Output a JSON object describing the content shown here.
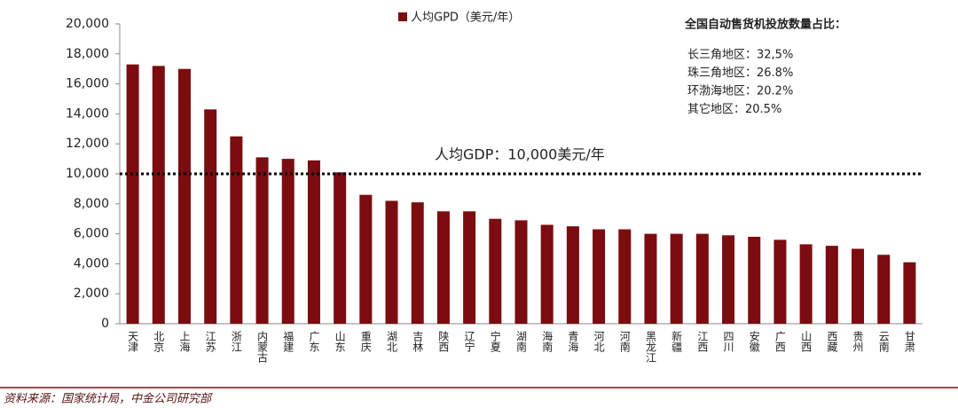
{
  "chart_data": {
    "type": "bar",
    "legend": "人均GPD（美元/年）",
    "categories": [
      "天津",
      "北京",
      "上海",
      "江苏",
      "浙江",
      "内蒙古",
      "福建",
      "广东",
      "山东",
      "重庆",
      "湖北",
      "吉林",
      "陕西",
      "辽宁",
      "宁夏",
      "湖南",
      "海南",
      "青海",
      "河北",
      "河南",
      "黑龙江",
      "新疆",
      "江西",
      "四川",
      "安徽",
      "广西",
      "山西",
      "西藏",
      "贵州",
      "云南",
      "甘肃"
    ],
    "values": [
      17300,
      17200,
      17000,
      14300,
      12500,
      11100,
      11000,
      10900,
      10100,
      8600,
      8200,
      8100,
      7500,
      7500,
      7000,
      6900,
      6600,
      6500,
      6300,
      6300,
      6000,
      6000,
      6000,
      5900,
      5800,
      5600,
      5300,
      5200,
      5000,
      4600,
      4100
    ],
    "color": "#7b0c10",
    "ylim": [
      0,
      20000
    ],
    "yticks": [
      0,
      {
        "value": 2000,
        "label": "2,000"
      },
      {
        "value": 4000,
        "label": "4,000"
      },
      {
        "value": 6000,
        "label": "6,000"
      },
      {
        "value": 8000,
        "label": "8,000"
      },
      {
        "value": 10000,
        "label": "10,000"
      },
      {
        "value": 12000,
        "label": "12,000"
      },
      {
        "value": 14000,
        "label": "14,000"
      },
      {
        "value": 16000,
        "label": "16,000"
      },
      {
        "value": 18000,
        "label": "18,000"
      },
      {
        "value": 20000,
        "label": "20,000"
      }
    ],
    "reference_line": {
      "value": 10000,
      "label": "人均GDP：10,000美元/年"
    },
    "annotation": {
      "title": "全国自动售货机投放数量占比：",
      "lines": [
        "长三角地区：32,5%",
        "珠三角地区：26.8%",
        "环渤海地区：20.2%",
        "其它地区：20.5%"
      ]
    },
    "source": "资料来源：国家统计局，中金公司研究部"
  }
}
